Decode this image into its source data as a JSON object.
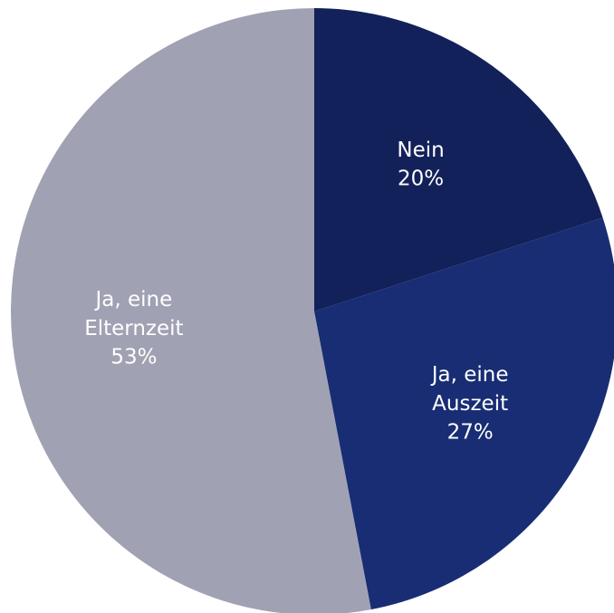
{
  "chart_data": {
    "type": "pie",
    "categories": [
      "Nein",
      "Ja, eine Auszeit",
      "Ja, eine Elternzeit"
    ],
    "values": [
      20,
      27,
      53
    ],
    "value_labels": [
      "20%",
      "27%",
      "53%"
    ],
    "colors": [
      "#13215a",
      "#182d73",
      "#a0a1b3"
    ]
  }
}
